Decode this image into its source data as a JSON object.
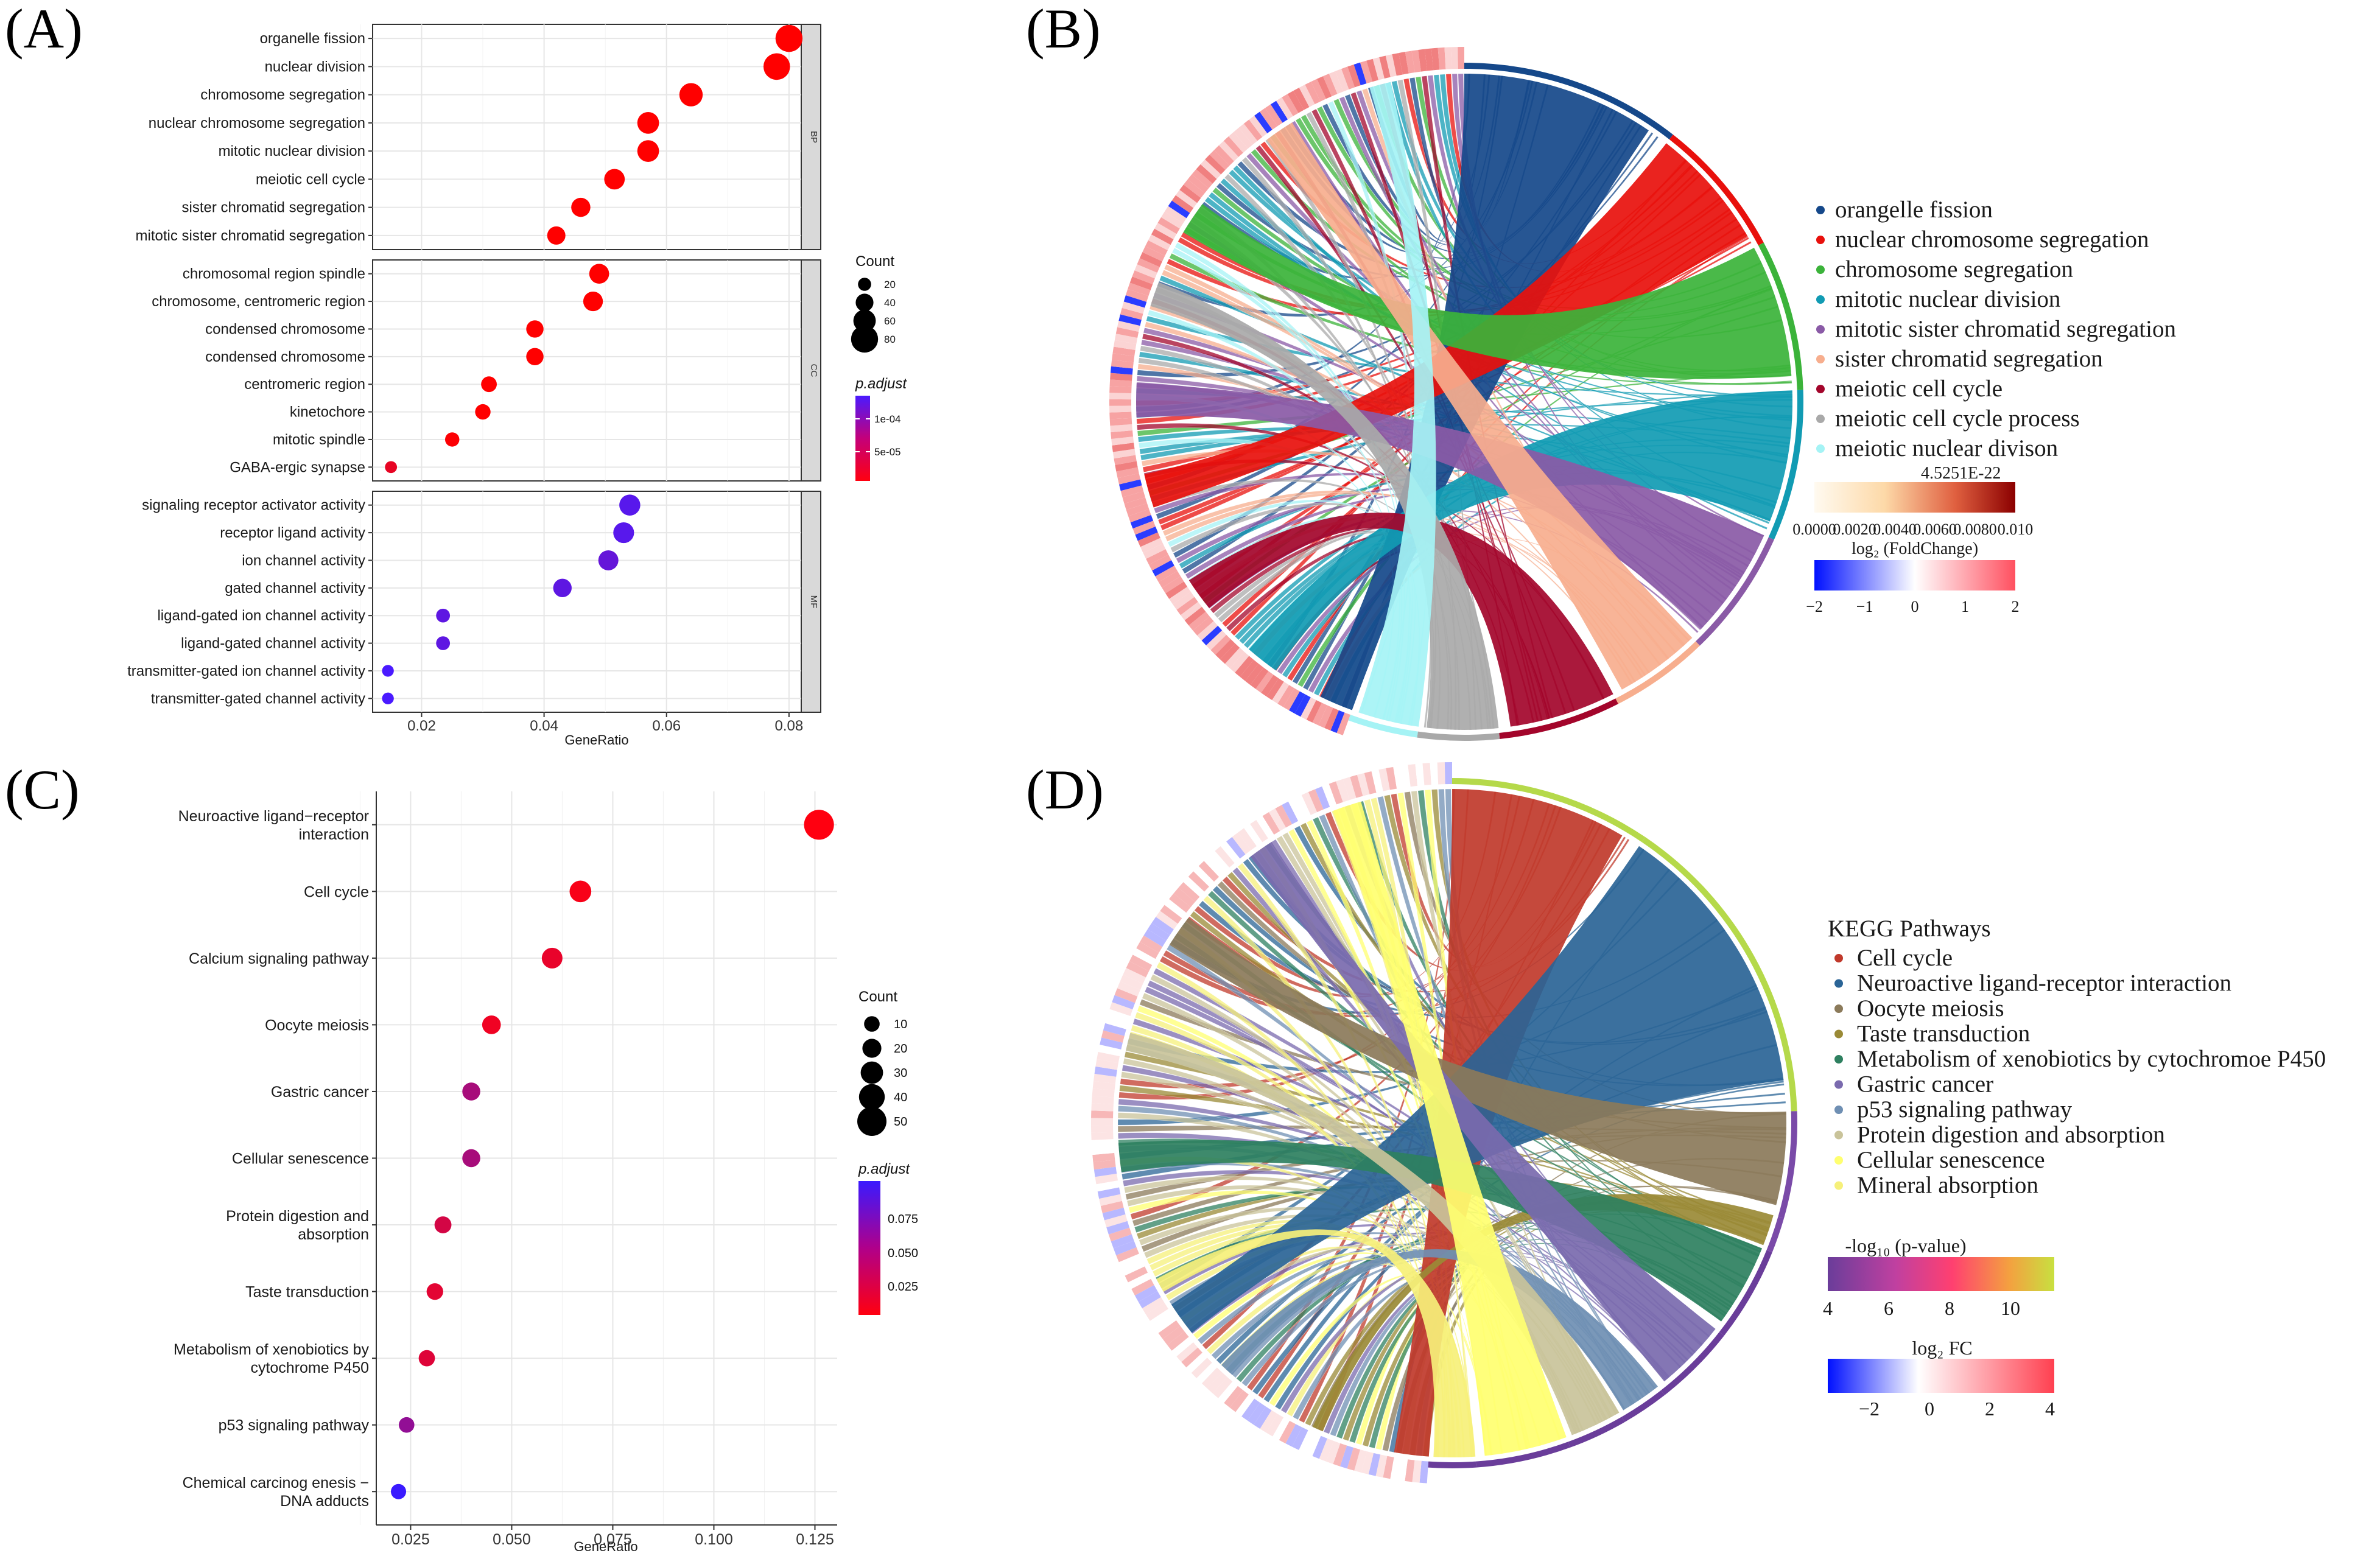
{
  "panel_labels": [
    "(A)",
    "(B)",
    "(C)",
    "(D)"
  ],
  "chart_data": [
    {
      "panel": "(A)",
      "type": "scatter",
      "subtype": "faceted-dotplot",
      "xlabel": "GeneRatio",
      "xticks": [
        "0.02",
        "0.04",
        "0.06",
        "0.08"
      ],
      "xlim": [
        0.012,
        0.082
      ],
      "facets": [
        {
          "name": "BP",
          "terms": [
            {
              "label": "organelle fission",
              "x": 0.08,
              "count": 80,
              "padj": 2e-06
            },
            {
              "label": "nuclear division",
              "x": 0.078,
              "count": 78,
              "padj": 2e-06
            },
            {
              "label": "chromosome segregation",
              "x": 0.064,
              "count": 64,
              "padj": 2e-06
            },
            {
              "label": "nuclear chromosome segregation",
              "x": 0.057,
              "count": 57,
              "padj": 2e-06
            },
            {
              "label": "mitotic nuclear division",
              "x": 0.057,
              "count": 57,
              "padj": 2e-06
            },
            {
              "label": "meiotic cell cycle",
              "x": 0.0515,
              "count": 52,
              "padj": 2e-06
            },
            {
              "label": "sister chromatid segregation",
              "x": 0.046,
              "count": 46,
              "padj": 2e-06
            },
            {
              "label": "mitotic sister chromatid segregation",
              "x": 0.042,
              "count": 42,
              "padj": 2e-06
            }
          ]
        },
        {
          "name": "CC",
          "terms": [
            {
              "label": "chromosomal region spindle",
              "x": 0.049,
              "count": 49,
              "padj": 2e-06
            },
            {
              "label": "chromosome, centromeric region",
              "x": 0.048,
              "count": 48,
              "padj": 2e-06
            },
            {
              "label": "condensed chromosome",
              "x": 0.0385,
              "count": 38,
              "padj": 2e-06
            },
            {
              "label": "condensed chromosome",
              "x": 0.0385,
              "count": 38,
              "padj": 2e-06
            },
            {
              "label": "centromeric region",
              "x": 0.031,
              "count": 31,
              "padj": 2e-06
            },
            {
              "label": "kinetochore",
              "x": 0.03,
              "count": 30,
              "padj": 2e-06
            },
            {
              "label": "mitotic spindle",
              "x": 0.025,
              "count": 25,
              "padj": 4e-06
            },
            {
              "label": "GABA-ergic synapse",
              "x": 0.015,
              "count": 15,
              "padj": 2e-05
            }
          ]
        },
        {
          "name": "MF",
          "terms": [
            {
              "label": "signaling receptor activator activity",
              "x": 0.054,
              "count": 54,
              "padj": 0.000125
            },
            {
              "label": "receptor ligand activity",
              "x": 0.053,
              "count": 53,
              "padj": 0.000125
            },
            {
              "label": "ion channel activity",
              "x": 0.0505,
              "count": 50,
              "padj": 0.000115
            },
            {
              "label": "gated channel activity",
              "x": 0.043,
              "count": 43,
              "padj": 0.00012
            },
            {
              "label": "ligand-gated ion channel activity",
              "x": 0.0235,
              "count": 23,
              "padj": 0.00012
            },
            {
              "label": "ligand-gated channel activity",
              "x": 0.0235,
              "count": 23,
              "padj": 0.00012
            },
            {
              "label": "transmitter-gated ion channel activity",
              "x": 0.0145,
              "count": 14,
              "padj": 0.000135
            },
            {
              "label": "transmitter-gated channel activity",
              "x": 0.0145,
              "count": 14,
              "padj": 0.000135
            }
          ]
        }
      ],
      "size_legend": {
        "title": "Count",
        "values": [
          20,
          40,
          60,
          80
        ]
      },
      "color_legend": {
        "title": "p.adjust",
        "labels": [
          "1e-04",
          "5e-05"
        ],
        "low": "#ff0000",
        "high": "#4a1aff"
      }
    },
    {
      "panel": "(B)",
      "type": "chord",
      "categories": [
        {
          "name": "orangelle fission",
          "color": "#15488a"
        },
        {
          "name": "nuclear chromosome segregation",
          "color": "#e8100c"
        },
        {
          "name": "chromosome segregation",
          "color": "#3bb33a"
        },
        {
          "name": "mitotic nuclear division",
          "color": "#119bb3"
        },
        {
          "name": "mitotic sister chromatid segregation",
          "color": "#8a5aa6"
        },
        {
          "name": "sister chromatid segregation",
          "color": "#f7ae8e"
        },
        {
          "name": "meiotic cell cycle",
          "color": "#a3052b"
        },
        {
          "name": "meiotic cell cycle process",
          "color": "#a9a9a9"
        },
        {
          "name": "meiotic nuclear divison",
          "color": "#a5f3f5"
        }
      ],
      "colorbar1": {
        "title": "4.5251E-22",
        "ticks": [
          "0.0000",
          "0.0020",
          "0.0040",
          "0.0060",
          "0.0080",
          "0.010"
        ]
      },
      "colorbar2": {
        "title": "log₂ (FoldChange)",
        "ticks": [
          "−2",
          "−1",
          "0",
          "1",
          "2"
        ]
      }
    },
    {
      "panel": "(C)",
      "type": "scatter",
      "subtype": "dotplot",
      "xlabel": "GeneRatio",
      "xticks": [
        "0.025",
        "0.050",
        "0.075",
        "0.100",
        "0.125"
      ],
      "xlim": [
        0.0165,
        0.1305
      ],
      "terms": [
        {
          "label": [
            "Neuroactive ligand−receptor",
            "interaction"
          ],
          "x": 0.126,
          "count": 52,
          "padj": 0.005
        },
        {
          "label": [
            "Cell cycle"
          ],
          "x": 0.067,
          "count": 28,
          "padj": 0.008
        },
        {
          "label": [
            "Calcium signaling pathway"
          ],
          "x": 0.06,
          "count": 25,
          "padj": 0.015
        },
        {
          "label": [
            "Oocyte meiosis"
          ],
          "x": 0.045,
          "count": 19,
          "padj": 0.012
        },
        {
          "label": [
            "Gastric cancer"
          ],
          "x": 0.04,
          "count": 17,
          "padj": 0.045
        },
        {
          "label": [
            "Cellular senescence"
          ],
          "x": 0.04,
          "count": 17,
          "padj": 0.045
        },
        {
          "label": [
            "Protein digestion and",
            "absorption"
          ],
          "x": 0.033,
          "count": 14,
          "padj": 0.025
        },
        {
          "label": [
            "Taste transduction"
          ],
          "x": 0.031,
          "count": 13,
          "padj": 0.018
        },
        {
          "label": [
            "Metabolism of xenobiotics by",
            "cytochrome P450"
          ],
          "x": 0.029,
          "count": 12,
          "padj": 0.02
        },
        {
          "label": [
            "p53 signaling pathway"
          ],
          "x": 0.024,
          "count": 10,
          "padj": 0.055
        },
        {
          "label": [
            "Chemical carcinog enesis −",
            "DNA adducts"
          ],
          "x": 0.022,
          "count": 9,
          "padj": 0.095
        }
      ],
      "size_legend": {
        "title": "Count",
        "values": [
          10,
          20,
          30,
          40,
          50
        ]
      },
      "color_legend": {
        "title": "p.adjust",
        "labels": [
          "0.075",
          "0.050",
          "0.025"
        ],
        "low": "#ff0000",
        "high": "#3a1aff"
      }
    },
    {
      "panel": "(D)",
      "type": "chord",
      "legend_title": "KEGG Pathways",
      "categories": [
        {
          "name": "Cell cycle",
          "color": "#c0392b"
        },
        {
          "name": "Neuroactive ligand-receptor interaction",
          "color": "#2a6496"
        },
        {
          "name": "Oocyte meiosis",
          "color": "#8b7a5a"
        },
        {
          "name": "Taste transduction",
          "color": "#9a8a36"
        },
        {
          "name": "Metabolism of xenobiotics by cytochromoe P450",
          "color": "#2e8060"
        },
        {
          "name": "Gastric cancer",
          "color": "#7a6aae"
        },
        {
          "name": "p53 signaling pathway",
          "color": "#6f8fb3"
        },
        {
          "name": "Protein digestion and absorption",
          "color": "#c9c39a"
        },
        {
          "name": "Cellular senescence",
          "color": "#ffff70"
        },
        {
          "name": "Mineral absorption",
          "color": "#f6f07a"
        }
      ],
      "colorbar1": {
        "title": "-log₁₀ (p-value)",
        "ticks": [
          "4",
          "6",
          "8",
          "10"
        ]
      },
      "colorbar2": {
        "title": "log₂ FC",
        "ticks": [
          "−2",
          "0",
          "2",
          "4"
        ]
      }
    }
  ]
}
